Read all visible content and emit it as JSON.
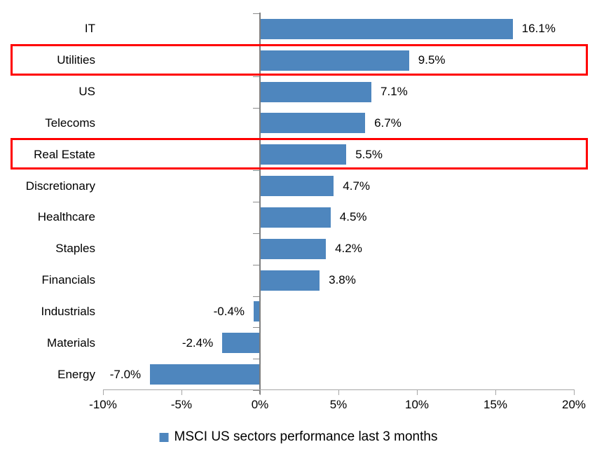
{
  "chart_data": {
    "type": "bar",
    "orientation": "horizontal",
    "title": "",
    "xlabel": "",
    "ylabel": "",
    "categories": [
      "IT",
      "Utilities",
      "US",
      "Telecoms",
      "Real Estate",
      "Discretionary",
      "Healthcare",
      "Staples",
      "Financials",
      "Industrials",
      "Materials",
      "Energy"
    ],
    "values": [
      16.1,
      9.5,
      7.1,
      6.7,
      5.5,
      4.7,
      4.5,
      4.2,
      3.8,
      -0.4,
      -2.4,
      -7.0
    ],
    "data_labels": [
      "16.1%",
      "9.5%",
      "7.1%",
      "6.7%",
      "5.5%",
      "4.7%",
      "4.5%",
      "4.2%",
      "3.8%",
      "-0.4%",
      "-2.4%",
      "-7.0%"
    ],
    "x_tick_labels": [
      "-10%",
      "-5%",
      "0%",
      "5%",
      "10%",
      "15%",
      "20%"
    ],
    "x_tick_values": [
      -10,
      -5,
      0,
      5,
      10,
      15,
      20
    ],
    "xlim": [
      -10,
      20
    ],
    "grid": false,
    "bar_color": "#4e86be",
    "axis_color": "#7f7f7f",
    "highlight_color": "#ff0000",
    "highlighted_categories": [
      "Utilities",
      "Real Estate"
    ],
    "legend": {
      "label": "MSCI US sectors performance last 3 months",
      "position": "bottom",
      "swatch_color": "#4e86be"
    }
  }
}
